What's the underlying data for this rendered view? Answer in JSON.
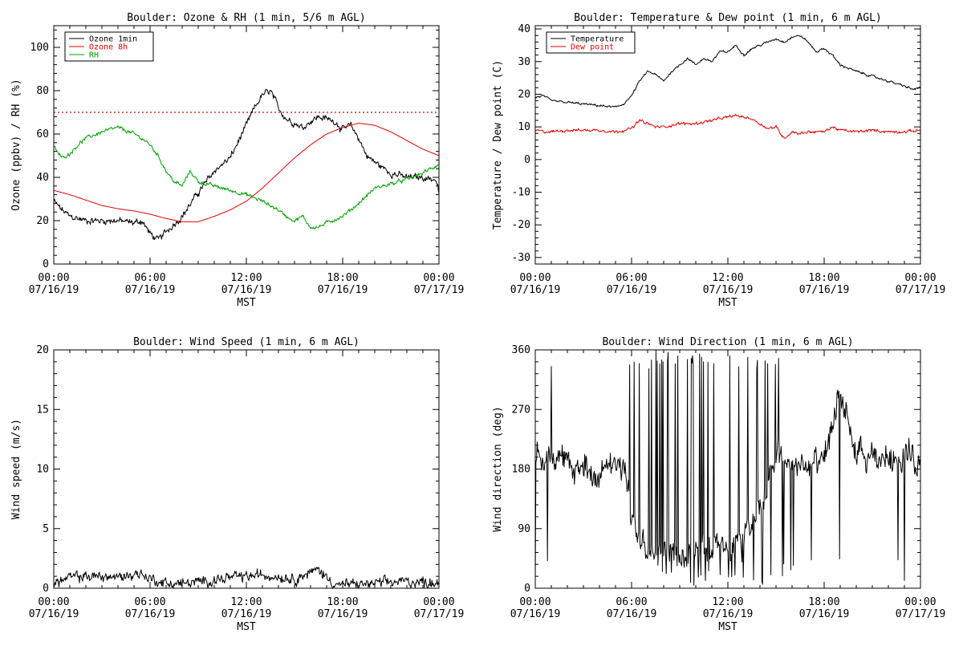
{
  "chart_data": [
    {
      "type": "line",
      "title": "Boulder: Ozone & RH (1 min, 5/6 m AGL)",
      "xlabel": "MST",
      "ylabel": "Ozone (ppbv) / RH (%)",
      "xlim": [
        0,
        24
      ],
      "ylim": [
        0,
        110
      ],
      "yticks": [
        0,
        20,
        40,
        60,
        80,
        100
      ],
      "xticks": [
        {
          "h": 0,
          "time": "00:00",
          "date": "07/16/19"
        },
        {
          "h": 6,
          "time": "06:00",
          "date": "07/16/19"
        },
        {
          "h": 12,
          "time": "12:00",
          "date": "07/16/19"
        },
        {
          "h": 18,
          "time": "18:00",
          "date": "07/16/19"
        },
        {
          "h": 24,
          "time": "00:00",
          "date": "07/17/19"
        }
      ],
      "legend": {
        "position": "top-left",
        "entries": [
          {
            "name": "Ozone 1min",
            "color": "#000000"
          },
          {
            "name": "Ozone 8h",
            "color": "#e00000"
          },
          {
            "name": "RH",
            "color": "#00a000"
          }
        ]
      },
      "reference_line": {
        "y": 70,
        "style": "dotted",
        "color": "#e00000"
      },
      "series": [
        {
          "name": "Ozone 1min",
          "color": "#000000",
          "noise": 1.6,
          "x": [
            0,
            0.5,
            1,
            2,
            3,
            4,
            5,
            5.5,
            6,
            6.5,
            7,
            8,
            9,
            10,
            11,
            12,
            12.5,
            13,
            13.5,
            14,
            14.5,
            15,
            15.5,
            16,
            16.5,
            17,
            17.5,
            18,
            18.5,
            19,
            19.5,
            20,
            21,
            21.5,
            22,
            23,
            23.8,
            24
          ],
          "y": [
            29,
            25,
            22,
            20,
            20,
            20,
            19,
            20,
            14,
            11,
            15,
            22,
            33,
            43,
            49,
            64,
            72,
            78,
            80,
            72,
            67,
            65,
            63,
            66,
            68,
            67,
            66,
            62,
            64,
            58,
            50,
            47,
            42,
            41,
            40,
            40,
            39,
            33
          ]
        },
        {
          "name": "Ozone 8h",
          "color": "#e00000",
          "noise": 0,
          "x": [
            0,
            1,
            2,
            3,
            4,
            5,
            6,
            7,
            8,
            9,
            10,
            11,
            12,
            13,
            14,
            15,
            16,
            17,
            18,
            19,
            20,
            21,
            22,
            23,
            24
          ],
          "y": [
            34,
            32,
            29.5,
            27,
            25.5,
            24.5,
            23,
            21,
            19.5,
            19.5,
            22,
            25,
            29,
            35,
            42,
            49,
            55,
            60,
            63,
            65,
            64,
            61,
            57,
            53,
            50
          ]
        },
        {
          "name": "RH",
          "color": "#00a000",
          "noise": 0.9,
          "x": [
            0,
            0.5,
            1,
            1.5,
            2,
            3,
            4,
            5,
            5.5,
            6,
            6.5,
            7,
            7.5,
            8,
            8.5,
            9,
            10,
            11,
            12,
            13,
            14,
            14.5,
            15,
            15.5,
            16,
            16.5,
            17,
            18,
            19,
            20,
            21,
            22,
            23,
            24
          ],
          "y": [
            54,
            49,
            51,
            55,
            58,
            61,
            63,
            60,
            58,
            55,
            50,
            43,
            38,
            36,
            43,
            38,
            36,
            34,
            32,
            29,
            25,
            22,
            20,
            22,
            17,
            17,
            19,
            22,
            28,
            35,
            37,
            39,
            42,
            46
          ]
        }
      ]
    },
    {
      "type": "line",
      "title": "Boulder: Temperature & Dew point (1 min, 6 m AGL)",
      "xlabel": "MST",
      "ylabel": "Temperature / Dew point (C)",
      "xlim": [
        0,
        24
      ],
      "ylim": [
        -32,
        41
      ],
      "yticks": [
        -30,
        -20,
        -10,
        0,
        10,
        20,
        30,
        40
      ],
      "xticks": [
        {
          "h": 0,
          "time": "00:00",
          "date": "07/16/19"
        },
        {
          "h": 6,
          "time": "06:00",
          "date": "07/16/19"
        },
        {
          "h": 12,
          "time": "12:00",
          "date": "07/16/19"
        },
        {
          "h": 18,
          "time": "18:00",
          "date": "07/16/19"
        },
        {
          "h": 24,
          "time": "00:00",
          "date": "07/17/19"
        }
      ],
      "legend": {
        "position": "top-left",
        "entries": [
          {
            "name": "Temperature",
            "color": "#000000"
          },
          {
            "name": "Dew point",
            "color": "#e00000"
          }
        ]
      },
      "series": [
        {
          "name": "Temperature",
          "color": "#000000",
          "noise": 0.35,
          "x": [
            0,
            0.5,
            1,
            2,
            3,
            4,
            5,
            5.5,
            6,
            6.5,
            7,
            7.5,
            8,
            8.5,
            9,
            9.5,
            10,
            10.5,
            11,
            11.5,
            12,
            12.5,
            13,
            13.5,
            14,
            14.5,
            15,
            15.5,
            16,
            16.5,
            17,
            17.5,
            18,
            18.5,
            19,
            20,
            21,
            22,
            23,
            23.5,
            24
          ],
          "y": [
            19,
            19.5,
            18,
            17.5,
            17,
            16.5,
            16,
            17,
            19.5,
            24,
            27,
            26,
            24,
            27,
            29,
            31,
            29,
            31,
            30,
            33,
            33,
            35,
            32,
            34,
            35,
            36,
            37,
            36,
            37.5,
            38,
            36,
            33,
            34,
            32,
            29,
            27,
            25.5,
            24,
            22.5,
            21.5,
            22
          ]
        },
        {
          "name": "Dew point",
          "color": "#e00000",
          "noise": 0.45,
          "x": [
            0,
            0.5,
            1,
            2,
            3,
            4,
            5,
            5.5,
            6,
            6.5,
            7,
            7.5,
            8,
            9,
            10,
            11,
            12,
            12.5,
            13,
            13.5,
            14,
            14.5,
            15,
            15.5,
            16,
            16.5,
            17,
            18,
            18.5,
            19,
            20,
            21,
            22,
            23,
            24
          ],
          "y": [
            9,
            8.5,
            8.5,
            9,
            9,
            9,
            8.5,
            9,
            9.5,
            12,
            11,
            10,
            10,
            11,
            11,
            12,
            13,
            13.5,
            13,
            12.5,
            11,
            9.5,
            10,
            6.5,
            8.5,
            8,
            8.5,
            8.5,
            10,
            9,
            8.5,
            9,
            8.5,
            8.5,
            9
          ]
        }
      ]
    },
    {
      "type": "line",
      "title": "Boulder: Wind Speed (1 min, 6 m AGL)",
      "xlabel": "MST",
      "ylabel": "Wind speed (m/s)",
      "xlim": [
        0,
        24
      ],
      "ylim": [
        0,
        20
      ],
      "yticks": [
        0,
        5,
        10,
        15,
        20
      ],
      "xticks": [
        {
          "h": 0,
          "time": "00:00",
          "date": "07/16/19"
        },
        {
          "h": 6,
          "time": "06:00",
          "date": "07/16/19"
        },
        {
          "h": 12,
          "time": "12:00",
          "date": "07/16/19"
        },
        {
          "h": 18,
          "time": "18:00",
          "date": "07/16/19"
        },
        {
          "h": 24,
          "time": "00:00",
          "date": "07/17/19"
        }
      ],
      "series": [
        {
          "name": "",
          "color": "#000000",
          "noise": 0.45,
          "floor": 0,
          "x": [
            0,
            1,
            2,
            3,
            4,
            5,
            5.5,
            6,
            7,
            8,
            9,
            10,
            11,
            12,
            13,
            14,
            15,
            16,
            16.5,
            17,
            17.5,
            18,
            19,
            20,
            21,
            22,
            23,
            24
          ],
          "y": [
            0.4,
            0.9,
            1.0,
            1.0,
            0.9,
            1.2,
            1.2,
            0.8,
            0.4,
            0.4,
            0.5,
            0.7,
            0.9,
            1.0,
            1.1,
            1.0,
            0.8,
            1.3,
            1.6,
            0.9,
            0.4,
            0.3,
            0.3,
            0.4,
            0.5,
            0.6,
            0.5,
            0.5
          ]
        }
      ]
    },
    {
      "type": "line",
      "title": "Boulder: Wind Direction (1 min, 6 m AGL)",
      "xlabel": "MST",
      "ylabel": "Wind direction (deg)",
      "xlim": [
        0,
        24
      ],
      "ylim": [
        0,
        360
      ],
      "yticks": [
        0,
        90,
        180,
        270,
        360
      ],
      "xticks": [
        {
          "h": 0,
          "time": "00:00",
          "date": "07/16/19"
        },
        {
          "h": 6,
          "time": "06:00",
          "date": "07/16/19"
        },
        {
          "h": 12,
          "time": "12:00",
          "date": "07/16/19"
        },
        {
          "h": 18,
          "time": "18:00",
          "date": "07/16/19"
        },
        {
          "h": 24,
          "time": "00:00",
          "date": "07/17/19"
        }
      ],
      "series": [
        {
          "name": "",
          "color": "#000000",
          "noise": 22,
          "floor": 0,
          "ceiling": 360,
          "wrap_spikes": true,
          "x": [
            0,
            0.5,
            1,
            2,
            3,
            4,
            5,
            5.5,
            6,
            7,
            8,
            9,
            10,
            11,
            12,
            13,
            14,
            15,
            16,
            17,
            18,
            19,
            20,
            21,
            22,
            23,
            24
          ],
          "y": [
            200,
            190,
            210,
            185,
            180,
            175,
            180,
            185,
            110,
            60,
            50,
            55,
            60,
            60,
            70,
            80,
            120,
            200,
            190,
            185,
            190,
            300,
            200,
            190,
            200,
            200,
            190
          ]
        }
      ]
    }
  ]
}
